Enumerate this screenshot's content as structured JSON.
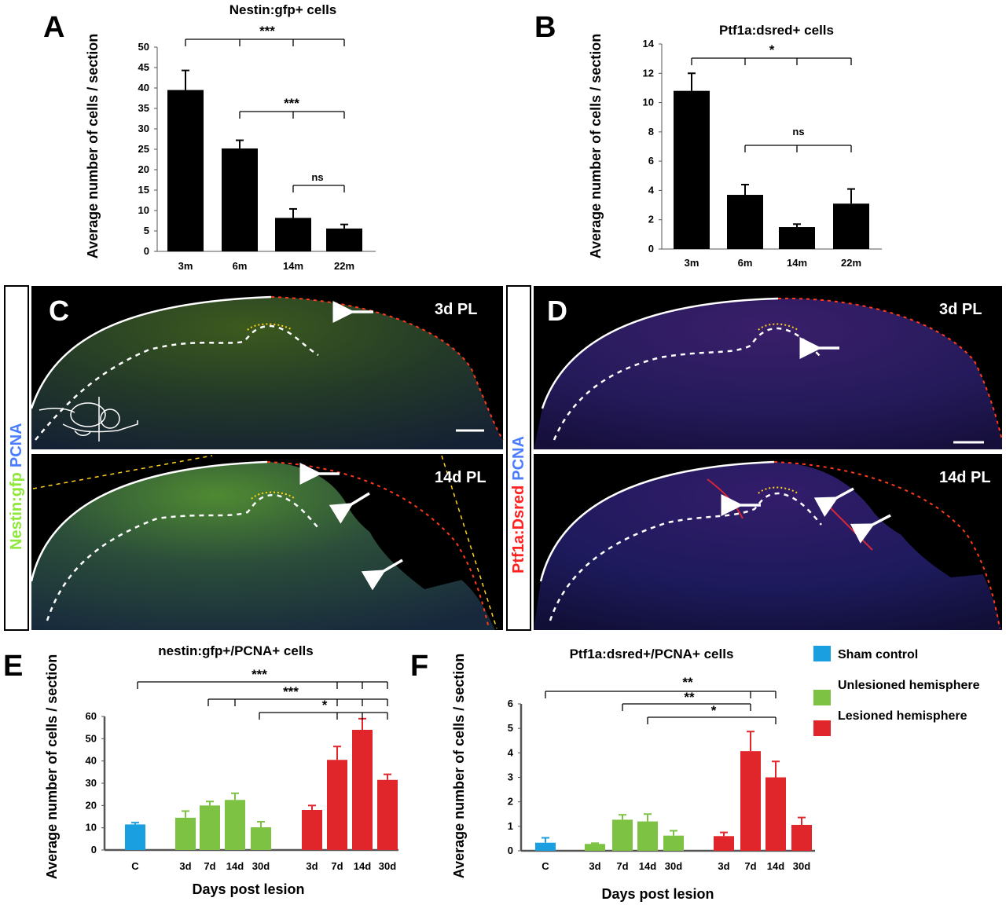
{
  "panels": {
    "A": "A",
    "B": "B",
    "C": "C",
    "D": "D",
    "E": "E",
    "F": "F"
  },
  "colors": {
    "sham": "#1a9fe0",
    "unlesioned": "#7dc242",
    "lesioned": "#e0262b",
    "bar_black": "#000000",
    "green_channel": "#8ee83a",
    "red_channel": "#ff2020",
    "blue_channel": "#4a7cff"
  },
  "chart_data": [
    {
      "panel": "A",
      "type": "bar",
      "title": "Nestin:gfp+ cells",
      "ylabel": "Average number of cells / section",
      "xlabel": "",
      "categories": [
        "3m",
        "6m",
        "14m",
        "22m"
      ],
      "values": [
        39.5,
        25.2,
        8.2,
        5.6
      ],
      "errors": [
        4.8,
        2.0,
        2.2,
        1.0
      ],
      "ylim": [
        0,
        50
      ],
      "yticks": [
        "0",
        "5",
        "10",
        "15",
        "20",
        "25",
        "30",
        "35",
        "40",
        "45",
        "50"
      ],
      "significance": [
        "***",
        "***",
        "ns"
      ]
    },
    {
      "panel": "B",
      "type": "bar",
      "title": "Ptf1a:dsred+ cells",
      "ylabel": "Average number of cells / section",
      "xlabel": "",
      "categories": [
        "3m",
        "6m",
        "14m",
        "22m"
      ],
      "values": [
        10.8,
        3.7,
        1.5,
        3.1
      ],
      "errors": [
        1.2,
        0.7,
        0.2,
        1.0
      ],
      "ylim": [
        0,
        14
      ],
      "yticks": [
        "0",
        "2",
        "4",
        "6",
        "8",
        "10",
        "12",
        "14"
      ],
      "significance": [
        "*",
        "ns"
      ]
    },
    {
      "panel": "E",
      "type": "bar",
      "title": "nestin:gfp+/PCNA+ cells",
      "ylabel": "Average number of cells / section",
      "xlabel": "Days post lesion",
      "categories": [
        "C",
        "3d",
        "7d",
        "14d",
        "30d",
        "3d",
        "7d",
        "14d",
        "30d"
      ],
      "groups": [
        "sham",
        "unlesioned",
        "unlesioned",
        "unlesioned",
        "unlesioned",
        "lesioned",
        "lesioned",
        "lesioned",
        "lesioned"
      ],
      "values": [
        11.5,
        14.5,
        20.0,
        22.5,
        10.2,
        18.0,
        40.5,
        54.0,
        31.5
      ],
      "errors": [
        0.8,
        3.0,
        1.8,
        3.0,
        2.5,
        2.0,
        6.0,
        5.0,
        2.5
      ],
      "ylim": [
        0,
        60
      ],
      "yticks": [
        "0",
        "10",
        "20",
        "30",
        "40",
        "50",
        "60"
      ],
      "significance": [
        "***",
        "***",
        "*"
      ]
    },
    {
      "panel": "F",
      "type": "bar",
      "title": "Ptf1a:dsred+/PCNA+ cells",
      "ylabel": "Average number of cells / section",
      "xlabel": "Days post lesion",
      "categories": [
        "C",
        "3d",
        "7d",
        "14d",
        "30d",
        "3d",
        "7d",
        "14d",
        "30d"
      ],
      "groups": [
        "sham",
        "unlesioned",
        "unlesioned",
        "unlesioned",
        "unlesioned",
        "lesioned",
        "lesioned",
        "lesioned",
        "lesioned"
      ],
      "values": [
        0.33,
        0.28,
        1.27,
        1.2,
        0.62,
        0.6,
        4.07,
        3.0,
        1.06
      ],
      "errors": [
        0.2,
        0.03,
        0.2,
        0.3,
        0.2,
        0.15,
        0.8,
        0.65,
        0.3
      ],
      "ylim": [
        0,
        6
      ],
      "yticks": [
        "0",
        "1",
        "2",
        "3",
        "4",
        "5",
        "6"
      ],
      "significance": [
        "**",
        "**",
        "*"
      ]
    }
  ],
  "legend": {
    "sham": "Sham control",
    "unlesioned": "Unlesioned hemisphere",
    "lesioned": "Lesioned hemisphere"
  },
  "micrographs": {
    "C": {
      "side_label_1": "Nestin:gfp",
      "side_label_2": "PCNA",
      "top_label": "3d PL",
      "bottom_label": "14d PL"
    },
    "D": {
      "side_label_1": "Ptf1a:Dsred",
      "side_label_2": "PCNA",
      "top_label": "3d PL",
      "bottom_label": "14d PL"
    }
  }
}
